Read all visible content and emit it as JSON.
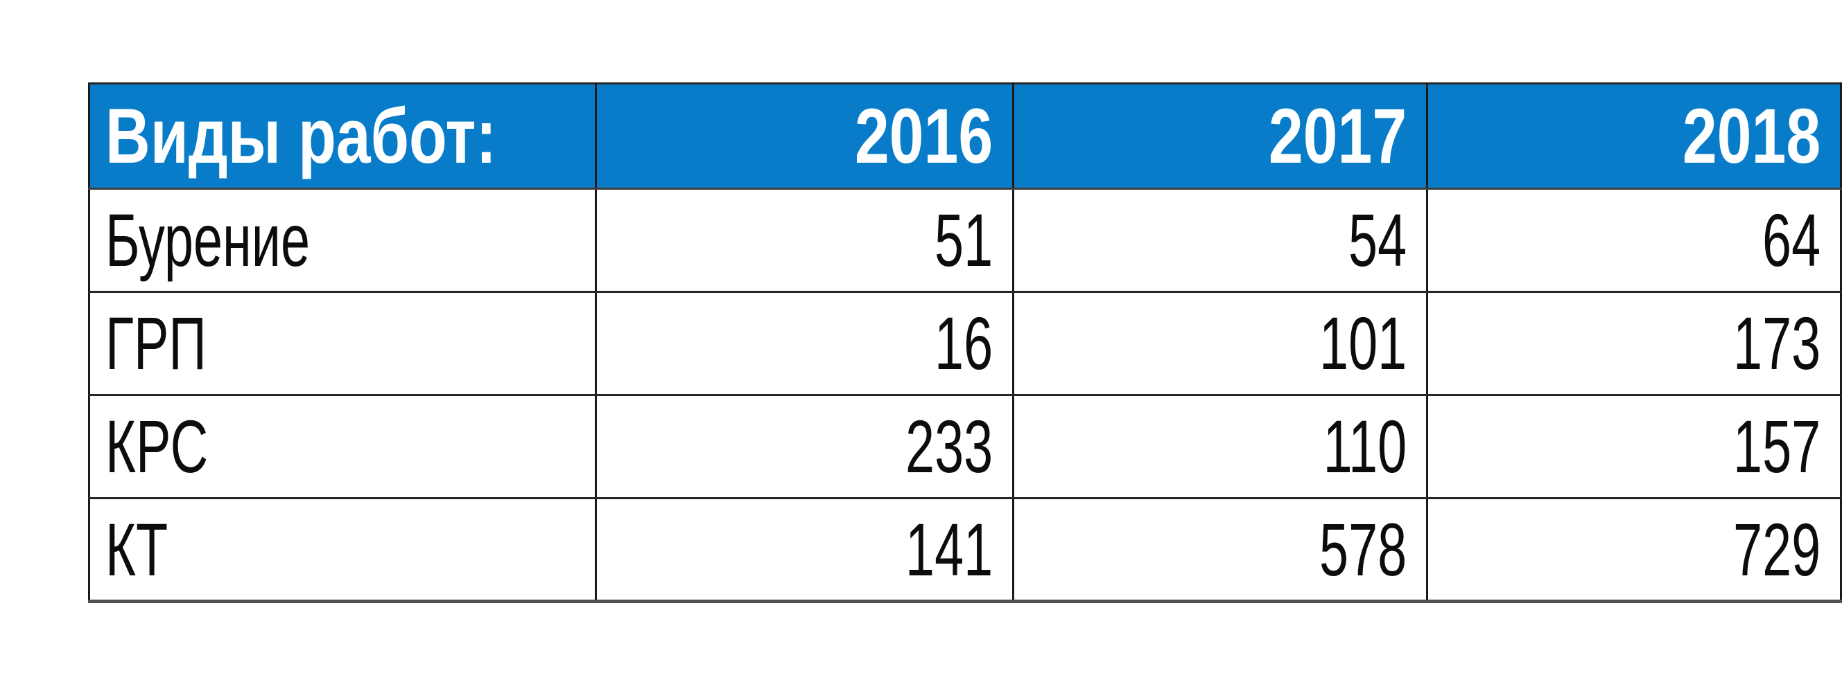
{
  "table": {
    "header": {
      "label": "Виды работ:",
      "years": [
        "2016",
        "2017",
        "2018"
      ]
    },
    "rows": [
      {
        "label": "Бурение",
        "values": [
          "51",
          "54",
          "64"
        ]
      },
      {
        "label": "ГРП",
        "values": [
          "16",
          "101",
          "173"
        ]
      },
      {
        "label": "КРС",
        "values": [
          "233",
          "110",
          "157"
        ]
      },
      {
        "label": "КТ",
        "values": [
          "141",
          "578",
          "729"
        ]
      }
    ],
    "colors": {
      "header_bg": "#087cc8",
      "header_text": "#ffffff",
      "body_text": "#0c0c0c",
      "grid": "#1a1a1a"
    }
  },
  "chart_data": {
    "type": "table",
    "title": "",
    "columns": [
      "Виды работ:",
      "2016",
      "2017",
      "2018"
    ],
    "rows": [
      [
        "Бурение",
        51,
        54,
        64
      ],
      [
        "ГРП",
        16,
        101,
        173
      ],
      [
        "КРС",
        233,
        110,
        157
      ],
      [
        "КТ",
        141,
        578,
        729
      ]
    ]
  }
}
